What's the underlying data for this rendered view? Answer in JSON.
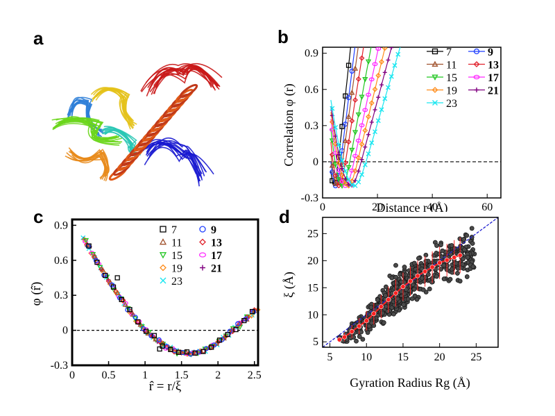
{
  "panels": {
    "a": {
      "label": "a"
    },
    "b": {
      "label": "b"
    },
    "c": {
      "label": "c"
    },
    "d": {
      "label": "d"
    }
  },
  "colors": {
    "7": "#000000",
    "9": "#1f3fff",
    "11": "#a0522d",
    "13": "#e0202a",
    "15": "#22c622",
    "17": "#ff28ff",
    "19": "#ff8c1a",
    "21": "#800080",
    "23": "#19e6f0",
    "grey": "#555555",
    "red": "#ff2020",
    "blue": "#2020d0"
  },
  "chart_data": [
    {
      "id": "b",
      "type": "line",
      "xlabel": "Distance r (Å)",
      "ylabel": "Correlation φ (r)",
      "xlim": [
        0,
        65
      ],
      "ylim": [
        -0.3,
        0.95
      ],
      "xticks": [
        0,
        20,
        40,
        60
      ],
      "yticks": [
        0.9,
        0.6,
        0.3,
        0,
        -0.3
      ],
      "legend_labels": [
        "7",
        "9",
        "11",
        "13",
        "15",
        "17",
        "19",
        "21",
        "23"
      ],
      "legend_bold": [
        false,
        true,
        false,
        true,
        false,
        true,
        false,
        true,
        false
      ],
      "series": [
        {
          "name": "7",
          "marker": "square",
          "xi": 2.6,
          "x_end": 13
        },
        {
          "name": "9",
          "marker": "circle",
          "xi": 3.0,
          "x_end": 27
        },
        {
          "name": "11",
          "marker": "triangle-up",
          "xi": 3.3,
          "x_end": 35
        },
        {
          "name": "13",
          "marker": "diamond",
          "xi": 3.8,
          "x_end": 40
        },
        {
          "name": "15",
          "marker": "triangle-down",
          "xi": 4.5,
          "x_end": 48
        },
        {
          "name": "17",
          "marker": "pentagon",
          "xi": 5.2,
          "x_end": 55
        },
        {
          "name": "19",
          "marker": "diamond-fill",
          "xi": 5.8,
          "x_end": 59
        },
        {
          "name": "21",
          "marker": "plus",
          "xi": 6.4,
          "x_end": 65
        },
        {
          "name": "23",
          "marker": "x",
          "xi": 7.2,
          "x_end": 65
        }
      ]
    },
    {
      "id": "c",
      "type": "line",
      "xlabel": "r̂ = r/ξ",
      "ylabel": "φ (r̂)",
      "xlim": [
        0,
        2.55
      ],
      "ylim": [
        -0.3,
        0.95
      ],
      "xticks": [
        0,
        0.5,
        1,
        1.5,
        2,
        2.5
      ],
      "yticks": [
        0.9,
        0.6,
        0.3,
        0,
        -0.3
      ],
      "legend_labels": [
        "7",
        "9",
        "11",
        "13",
        "15",
        "17",
        "19",
        "21",
        "23"
      ],
      "legend_bold": [
        false,
        true,
        false,
        true,
        false,
        true,
        false,
        true,
        false
      ]
    },
    {
      "id": "d",
      "type": "scatter",
      "xlabel": "Gyration Radius Rg (Å)",
      "ylabel": "ξ (Å)",
      "xlim": [
        4,
        28
      ],
      "ylim": [
        4,
        28
      ],
      "xticks": [
        5,
        10,
        15,
        20,
        25
      ],
      "yticks": [
        5,
        10,
        15,
        20,
        25
      ],
      "fit_line": {
        "x": [
          4,
          28
        ],
        "y": [
          4,
          28
        ]
      },
      "mean_curve": {
        "x": [
          6.3,
          7,
          8,
          9,
          10,
          11,
          12,
          13,
          14,
          15,
          16,
          17,
          18,
          19,
          20,
          21,
          22,
          22.8
        ],
        "y": [
          5.4,
          5.9,
          6.9,
          7.9,
          8.9,
          10.2,
          11.5,
          12.8,
          14.0,
          15.2,
          16.2,
          17.2,
          18.0,
          18.8,
          19.6,
          20.1,
          20.6,
          21.0
        ],
        "err": [
          0.5,
          0.8,
          1.2,
          1.5,
          1.8,
          2.0,
          2.2,
          2.4,
          2.5,
          2.6,
          2.7,
          2.8,
          2.8,
          2.9,
          3.0,
          3.0,
          3.2,
          3.3
        ]
      }
    }
  ]
}
